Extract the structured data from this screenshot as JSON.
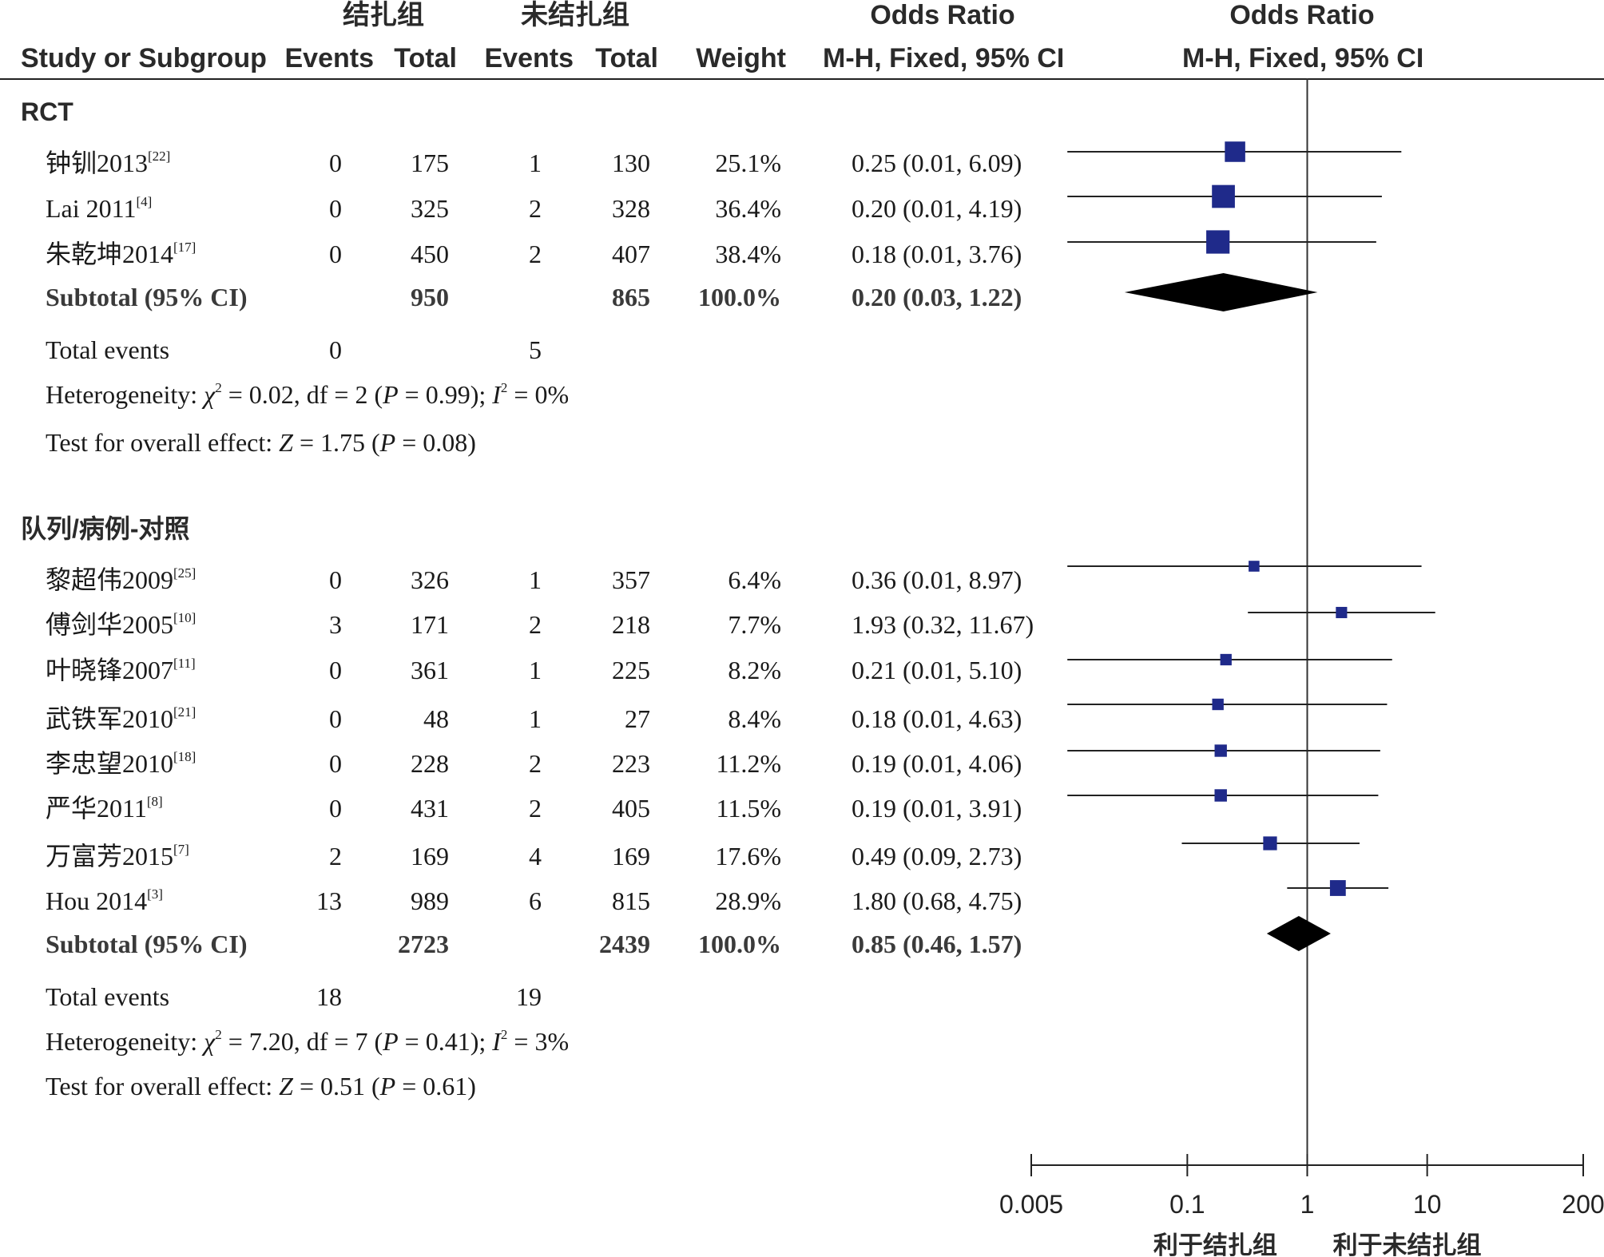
{
  "header": {
    "group_left": "结扎组",
    "group_right": "未结扎组",
    "or_title_text": "Odds Ratio",
    "or_title_plot": "Odds Ratio",
    "col_study": "Study or Subgroup",
    "col_events_left": "Events",
    "col_total_left": "Total",
    "col_events_right": "Events",
    "col_total_right": "Total",
    "col_weight": "Weight",
    "col_method_text": "M-H, Fixed, 95% CI",
    "col_method_plot": "M-H, Fixed, 95% CI"
  },
  "subgroups": [
    {
      "title": "RCT",
      "studies": [
        {
          "name": "钟钏2013",
          "ref": "[22]",
          "e1": "0",
          "t1": "175",
          "e2": "1",
          "t2": "130",
          "weight": "25.1%",
          "ci_text": "0.25 (0.01, 6.09)"
        },
        {
          "name": "Lai 2011",
          "ref": "[4]",
          "e1": "0",
          "t1": "325",
          "e2": "2",
          "t2": "328",
          "weight": "36.4%",
          "ci_text": "0.20 (0.01, 4.19)"
        },
        {
          "name": "朱乾坤2014",
          "ref": "[17]",
          "e1": "0",
          "t1": "450",
          "e2": "2",
          "t2": "407",
          "weight": "38.4%",
          "ci_text": "0.18 (0.01, 3.76)"
        }
      ],
      "subtotal": {
        "label": "Subtotal (95% CI)",
        "t1": "950",
        "t2": "865",
        "weight": "100.0%",
        "ci_text": "0.20 (0.03, 1.22)"
      },
      "total_events": {
        "label": "Total events",
        "e1": "0",
        "e2": "5"
      },
      "heterogeneity": {
        "prefix": "Heterogeneity: ",
        "chi": "χ",
        "chi_sup": "2",
        "mid": " = 0.02, df = 2 (",
        "p": "P",
        "pval": " = 0.99); ",
        "i": "I",
        "i_sup": "2",
        "tail": " = 0%"
      },
      "overall": {
        "prefix": "Test for overall effect: ",
        "z": "Z",
        "zval": " = 1.75 (",
        "p": "P",
        "pval": " = 0.08)"
      }
    },
    {
      "title": "队列/病例-对照",
      "studies": [
        {
          "name": "黎超伟2009",
          "ref": "[25]",
          "e1": "0",
          "t1": "326",
          "e2": "1",
          "t2": "357",
          "weight": "6.4%",
          "ci_text": "0.36 (0.01, 8.97)"
        },
        {
          "name": "傅剑华2005",
          "ref": "[10]",
          "e1": "3",
          "t1": "171",
          "e2": "2",
          "t2": "218",
          "weight": "7.7%",
          "ci_text": "1.93 (0.32, 11.67)"
        },
        {
          "name": "叶晓锋2007",
          "ref": "[11]",
          "e1": "0",
          "t1": "361",
          "e2": "1",
          "t2": "225",
          "weight": "8.2%",
          "ci_text": "0.21 (0.01, 5.10)"
        },
        {
          "name": "武铁军2010",
          "ref": "[21]",
          "e1": "0",
          "t1": "48",
          "e2": "1",
          "t2": "27",
          "weight": "8.4%",
          "ci_text": "0.18 (0.01, 4.63)"
        },
        {
          "name": "李忠望2010",
          "ref": "[18]",
          "e1": "0",
          "t1": "228",
          "e2": "2",
          "t2": "223",
          "weight": "11.2%",
          "ci_text": "0.19 (0.01, 4.06)"
        },
        {
          "name": "严华2011",
          "ref": "[8]",
          "e1": "0",
          "t1": "431",
          "e2": "2",
          "t2": "405",
          "weight": "11.5%",
          "ci_text": "0.19 (0.01, 3.91)"
        },
        {
          "name": "万富芳2015",
          "ref": "[7]",
          "e1": "2",
          "t1": "169",
          "e2": "4",
          "t2": "169",
          "weight": "17.6%",
          "ci_text": "0.49 (0.09, 2.73)"
        },
        {
          "name": "Hou 2014",
          "ref": "[3]",
          "e1": "13",
          "t1": "989",
          "e2": "6",
          "t2": "815",
          "weight": "28.9%",
          "ci_text": "1.80 (0.68, 4.75)"
        }
      ],
      "subtotal": {
        "label": "Subtotal (95% CI)",
        "t1": "2723",
        "t2": "2439",
        "weight": "100.0%",
        "ci_text": "0.85 (0.46, 1.57)"
      },
      "total_events": {
        "label": "Total events",
        "e1": "18",
        "e2": "19"
      },
      "heterogeneity": {
        "prefix": "Heterogeneity: ",
        "chi": "χ",
        "chi_sup": "2",
        "mid": " = 7.20, df = 7 (",
        "p": "P",
        "pval": " = 0.41); ",
        "i": "I",
        "i_sup": "2",
        "tail": " = 3%"
      },
      "overall": {
        "prefix": "Test for overall effect: ",
        "z": "Z",
        "zval": " = 0.51 (",
        "p": "P",
        "pval": " = 0.61)"
      }
    }
  ],
  "chart_data": {
    "type": "forest",
    "scale": "log",
    "xlim": [
      0.005,
      200
    ],
    "ticks": [
      0.005,
      0.1,
      1,
      10,
      200
    ],
    "tick_labels": [
      "0.005",
      "0.1",
      "1",
      "10",
      "200"
    ],
    "null_line": 1,
    "favors_left": "利于结扎组",
    "favors_right": "利于未结扎组",
    "marker_color": "#1f2a8a",
    "diamond_color": "#000000",
    "subgroups": [
      {
        "name": "RCT",
        "studies": [
          {
            "name": "钟钏2013",
            "or": 0.25,
            "lo": 0.01,
            "hi": 6.09,
            "weight": 25.1
          },
          {
            "name": "Lai 2011",
            "or": 0.2,
            "lo": 0.01,
            "hi": 4.19,
            "weight": 36.4
          },
          {
            "name": "朱乾坤2014",
            "or": 0.18,
            "lo": 0.01,
            "hi": 3.76,
            "weight": 38.4
          }
        ],
        "subtotal": {
          "or": 0.2,
          "lo": 0.03,
          "hi": 1.22
        }
      },
      {
        "name": "队列/病例-对照",
        "studies": [
          {
            "name": "黎超伟2009",
            "or": 0.36,
            "lo": 0.01,
            "hi": 8.97,
            "weight": 6.4
          },
          {
            "name": "傅剑华2005",
            "or": 1.93,
            "lo": 0.32,
            "hi": 11.67,
            "weight": 7.7
          },
          {
            "name": "叶晓锋2007",
            "or": 0.21,
            "lo": 0.01,
            "hi": 5.1,
            "weight": 8.2
          },
          {
            "name": "武铁军2010",
            "or": 0.18,
            "lo": 0.01,
            "hi": 4.63,
            "weight": 8.4
          },
          {
            "name": "李忠望2010",
            "or": 0.19,
            "lo": 0.01,
            "hi": 4.06,
            "weight": 11.2
          },
          {
            "name": "严华2011",
            "or": 0.19,
            "lo": 0.01,
            "hi": 3.91,
            "weight": 11.5
          },
          {
            "name": "万富芳2015",
            "or": 0.49,
            "lo": 0.09,
            "hi": 2.73,
            "weight": 17.6
          },
          {
            "name": "Hou 2014",
            "or": 1.8,
            "lo": 0.68,
            "hi": 4.75,
            "weight": 28.9
          }
        ],
        "subtotal": {
          "or": 0.85,
          "lo": 0.46,
          "hi": 1.57
        }
      }
    ]
  }
}
